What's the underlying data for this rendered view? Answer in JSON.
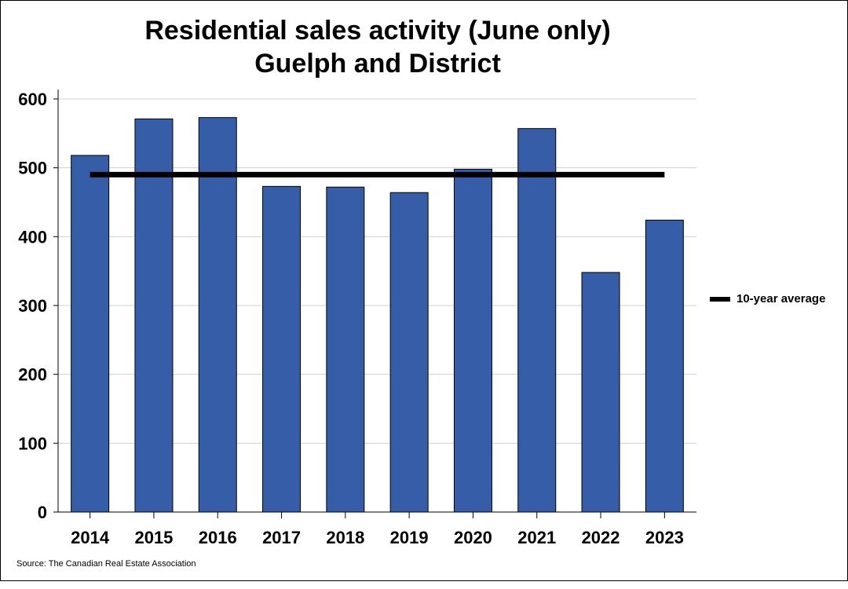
{
  "chart_data": {
    "type": "bar",
    "title": "Residential sales activity (June only)",
    "subtitle": "Guelph and District",
    "categories": [
      "2014",
      "2015",
      "2016",
      "2017",
      "2018",
      "2019",
      "2020",
      "2021",
      "2022",
      "2023"
    ],
    "values": [
      518,
      571,
      573,
      473,
      472,
      464,
      498,
      557,
      348,
      424
    ],
    "reference_line": {
      "name": "10-year average",
      "value": 490
    },
    "ylim": [
      0,
      600
    ],
    "yticks": [
      0,
      100,
      200,
      300,
      400,
      500,
      600
    ],
    "xlabel": "",
    "ylabel": "",
    "grid": true,
    "legend_position": "right",
    "bar_color": "#365ea8",
    "line_color": "#000000"
  },
  "legend": {
    "label": "10-year average"
  },
  "source": "Source: The Canadian Real Estate Association"
}
